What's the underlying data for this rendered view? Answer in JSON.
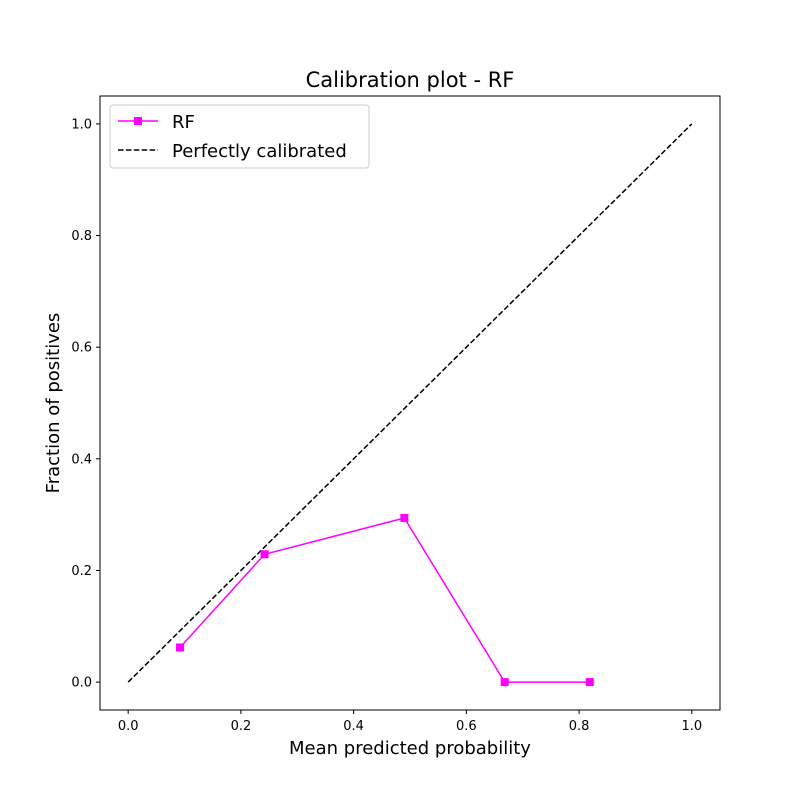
{
  "chart_data": {
    "type": "line",
    "title": "Calibration plot - RF",
    "xlabel": "Mean predicted probability",
    "ylabel": "Fraction of positives",
    "xlim": [
      -0.05,
      1.05
    ],
    "ylim": [
      -0.05,
      1.05
    ],
    "x_ticks": [
      0.0,
      0.2,
      0.4,
      0.6,
      0.8,
      1.0
    ],
    "y_ticks": [
      0.0,
      0.2,
      0.4,
      0.6,
      0.8,
      1.0
    ],
    "x_tick_labels": [
      "0.0",
      "0.2",
      "0.4",
      "0.6",
      "0.8",
      "1.0"
    ],
    "y_tick_labels": [
      "0.0",
      "0.2",
      "0.4",
      "0.6",
      "0.8",
      "1.0"
    ],
    "grid": false,
    "legend_position": "top-left",
    "series": [
      {
        "name": "RF",
        "style": "solid-square-markers",
        "color": "#ff00ff",
        "x": [
          0.092,
          0.242,
          0.49,
          0.668,
          0.819
        ],
        "y": [
          0.062,
          0.229,
          0.294,
          0.0,
          0.0
        ]
      },
      {
        "name": "Perfectly calibrated",
        "style": "dashed",
        "color": "#000000",
        "x": [
          0.0,
          1.0
        ],
        "y": [
          0.0,
          1.0
        ]
      }
    ]
  }
}
